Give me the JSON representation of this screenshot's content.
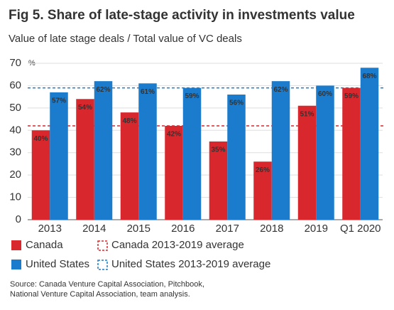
{
  "chart_data": {
    "type": "bar",
    "title": "Fig 5. Share of late-stage activity in investments value",
    "subtitle": "Value of late stage deals / Total value of VC deals",
    "y_unit": "%",
    "categories": [
      "2013",
      "2014",
      "2015",
      "2016",
      "2017",
      "2018",
      "2019",
      "Q1 2020"
    ],
    "series": [
      {
        "name": "Canada",
        "color": "#d9272e",
        "values": [
          40,
          54,
          48,
          42,
          35,
          26,
          51,
          59
        ],
        "value_labels": [
          "40%",
          "54%",
          "48%",
          "42%",
          "35%",
          "26%",
          "51%",
          "59%"
        ]
      },
      {
        "name": "United States",
        "color": "#1b7bcc",
        "values": [
          57,
          62,
          61,
          59,
          56,
          62,
          60,
          68
        ],
        "value_labels": [
          "57%",
          "62%",
          "61%",
          "59%",
          "56%",
          "62%",
          "60%",
          "68%"
        ]
      }
    ],
    "averages": [
      {
        "name": "Canada 2013-2019 average",
        "color": "#d9272e",
        "value": 42
      },
      {
        "name": "United States 2013-2019 average",
        "color": "#1b7bcc",
        "value": 59
      }
    ],
    "ylim": [
      0,
      70
    ],
    "yticks": [
      0,
      10,
      20,
      30,
      40,
      50,
      60,
      70
    ],
    "grid": true,
    "source": [
      "Source: Canada Venture Capital Association, Pitchbook,",
      "National Venture Capital Association, team analysis."
    ]
  }
}
